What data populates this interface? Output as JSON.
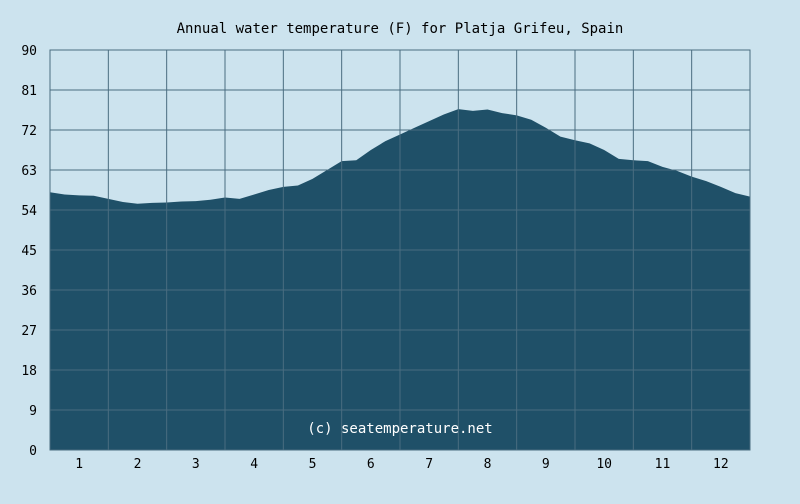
{
  "chart_data": {
    "type": "area",
    "title": "Annual water temperature (F) for Platja Grifeu, Spain",
    "watermark": "(c) seatemperature.net",
    "xlabel": "",
    "ylabel": "",
    "x_ticks": [
      "1",
      "2",
      "3",
      "4",
      "5",
      "6",
      "7",
      "8",
      "9",
      "10",
      "11",
      "12"
    ],
    "y_ticks": [
      "0",
      "9",
      "18",
      "27",
      "36",
      "45",
      "54",
      "63",
      "72",
      "81",
      "90"
    ],
    "ylim": [
      0,
      90
    ],
    "xlim": [
      0.5,
      12.5
    ],
    "grid": true,
    "colors": {
      "background": "#cce3ee",
      "plot_background": "#cce3ee",
      "fill": "#1f5068",
      "grid": "#4a6d80",
      "text": "#000000",
      "watermark": "#ffffff"
    },
    "series": [
      {
        "x": [
          0.5,
          0.75,
          1.0,
          1.25,
          1.5,
          1.75,
          2.0,
          2.25,
          2.5,
          2.75,
          3.0,
          3.25,
          3.5,
          3.75,
          4.0,
          4.25,
          4.5,
          4.75,
          5.0,
          5.25,
          5.5,
          5.75,
          6.0,
          6.25,
          6.5,
          6.75,
          7.0,
          7.25,
          7.5,
          7.75,
          8.0,
          8.25,
          8.5,
          8.75,
          9.0,
          9.25,
          9.5,
          9.75,
          10.0,
          10.25,
          10.5,
          10.75,
          11.0,
          11.25,
          11.5,
          11.75,
          12.0,
          12.25,
          12.5
        ],
        "values": [
          58.0,
          57.5,
          57.3,
          57.2,
          56.5,
          55.8,
          55.4,
          55.6,
          55.7,
          55.9,
          56.0,
          56.3,
          56.8,
          56.5,
          57.5,
          58.5,
          59.2,
          59.5,
          61.0,
          63.0,
          65.0,
          65.2,
          67.5,
          69.5,
          71.0,
          72.5,
          74.0,
          75.5,
          76.7,
          76.3,
          76.6,
          75.8,
          75.3,
          74.3,
          72.5,
          70.5,
          69.7,
          69.0,
          67.5,
          65.5,
          65.2,
          65.0,
          63.7,
          62.8,
          61.5,
          60.5,
          59.2,
          57.8,
          57.0
        ]
      }
    ]
  }
}
